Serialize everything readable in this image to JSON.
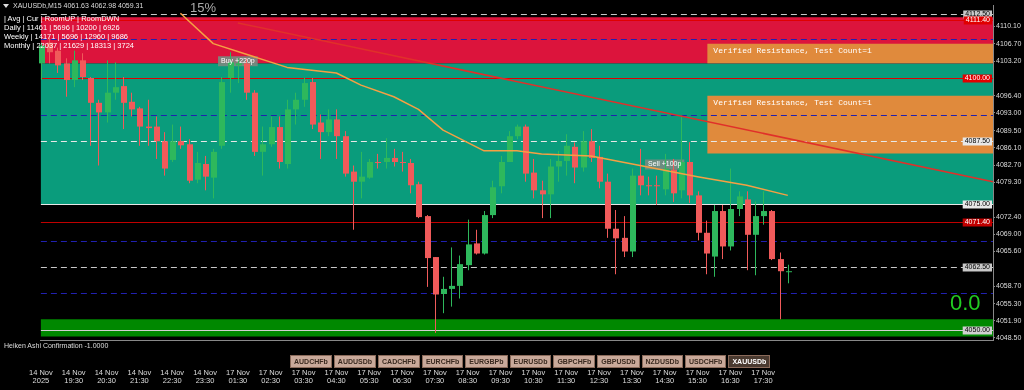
{
  "chart_data": {
    "type": "candlestick",
    "title": "XAUUSDb,M15 4061.63 4062.98 4059.31",
    "categories": [
      "14 Nov 2025",
      null,
      null,
      null,
      "14 Nov 19:30",
      null,
      null,
      null,
      "14 Nov 20:30",
      null,
      null,
      null,
      "14 Nov 21:30",
      null,
      null,
      null,
      "14 Nov 22:30",
      null,
      null,
      null,
      "14 Nov 23:30",
      null,
      null,
      null,
      "17 Nov 01:30",
      null,
      null,
      null,
      "17 Nov 02:30",
      null,
      null,
      null,
      "17 Nov 03:30",
      null,
      null,
      null,
      "17 Nov 04:30",
      null,
      null,
      null,
      "17 Nov 05:30",
      null,
      null,
      null,
      "17 Nov 06:30",
      null,
      null,
      null,
      "17 Nov 07:30",
      null,
      null,
      null,
      "17 Nov 08:30",
      null,
      null,
      null,
      "17 Nov 09:30",
      null,
      null,
      null,
      "17 Nov 10:30",
      null,
      null,
      null,
      "17 Nov 11:30",
      null,
      null,
      null,
      "17 Nov 12:30",
      null,
      null,
      null,
      "17 Nov 13:30",
      null,
      null,
      null,
      "17 Nov 14:30",
      null,
      null,
      null,
      "17 Nov 15:30",
      null,
      null,
      null,
      "17 Nov 16:30",
      null,
      null,
      null,
      "17 Nov 17:30",
      null,
      null,
      null,
      null,
      null,
      null,
      null,
      null,
      null,
      null,
      null,
      null,
      null,
      null,
      null,
      null,
      null,
      null,
      null,
      null,
      null,
      null,
      null,
      null,
      null,
      null,
      null,
      null
    ],
    "ohlc": [
      [
        4102.8,
        4106.9,
        4099.5,
        4106.3
      ],
      [
        4106.9,
        4107.9,
        4102.8,
        4105.0
      ],
      [
        4105.3,
        4105.9,
        4100.9,
        4102.4
      ],
      [
        4102.8,
        4103.8,
        4096.2,
        4099.5
      ],
      [
        4099.5,
        4105.3,
        4098.1,
        4103.4
      ],
      [
        4103.4,
        4104.8,
        4099.5,
        4100.1
      ],
      [
        4099.9,
        4100.1,
        4086.5,
        4095.0
      ],
      [
        4095.0,
        4095.6,
        4082.6,
        4093.1
      ],
      [
        4093.1,
        4103.4,
        4091.1,
        4097.0
      ],
      [
        4097.0,
        4103.0,
        4095.6,
        4098.1
      ],
      [
        4098.3,
        4100.1,
        4089.8,
        4095.0
      ],
      [
        4095.2,
        4097.0,
        4092.3,
        4093.7
      ],
      [
        4093.9,
        4094.2,
        4086.5,
        4090.3
      ],
      [
        4090.3,
        4095.6,
        4086.5,
        4090.0
      ],
      [
        4090.3,
        4092.3,
        4083.9,
        4087.4
      ],
      [
        4087.4,
        4089.2,
        4080.6,
        4082.0
      ],
      [
        4083.7,
        4090.7,
        4083.3,
        4087.4
      ],
      [
        4087.4,
        4090.3,
        4085.9,
        4086.6
      ],
      [
        4086.8,
        4087.8,
        4079.1,
        4079.6
      ],
      [
        4079.8,
        4085.3,
        4079.1,
        4083.1
      ],
      [
        4082.9,
        4084.5,
        4077.7,
        4080.4
      ],
      [
        4080.2,
        4085.9,
        4076.1,
        4085.3
      ],
      [
        4086.5,
        4100.1,
        4085.9,
        4099.1
      ],
      [
        4099.9,
        4105.0,
        4097.0,
        4103.0
      ],
      [
        4102.4,
        4103.8,
        4098.9,
        4102.8
      ],
      [
        4102.8,
        4103.8,
        4095.6,
        4097.0
      ],
      [
        4097.0,
        4097.5,
        4084.5,
        4085.3
      ],
      [
        4085.3,
        4090.3,
        4080.6,
        4086.8
      ],
      [
        4086.8,
        4092.3,
        4086.3,
        4090.2
      ],
      [
        4090.2,
        4092.3,
        4082.0,
        4083.3
      ],
      [
        4082.9,
        4095.6,
        4082.0,
        4093.7
      ],
      [
        4093.7,
        4097.0,
        4090.7,
        4095.6
      ],
      [
        4095.6,
        4099.9,
        4094.2,
        4098.9
      ],
      [
        4099.1,
        4099.9,
        4089.8,
        4090.7
      ],
      [
        4091.1,
        4092.7,
        4083.9,
        4089.2
      ],
      [
        4089.2,
        4093.7,
        4088.4,
        4091.7
      ],
      [
        4091.7,
        4093.7,
        4083.9,
        4088.4
      ],
      [
        4088.4,
        4089.4,
        4080.4,
        4081.0
      ],
      [
        4081.4,
        4082.6,
        4069.9,
        4079.4
      ],
      [
        4079.4,
        4085.3,
        4076.1,
        4080.4
      ],
      [
        4080.2,
        4083.9,
        4080.0,
        4083.3
      ],
      [
        4083.3,
        4084.9,
        4082.0,
        4083.1
      ],
      [
        4083.3,
        4088.0,
        4082.0,
        4084.1
      ],
      [
        4084.1,
        4085.9,
        4082.4,
        4083.3
      ],
      [
        4083.3,
        4085.3,
        4081.4,
        4083.1
      ],
      [
        4083.1,
        4083.9,
        4077.1,
        4078.7
      ],
      [
        4078.9,
        4079.4,
        4072.2,
        4072.4
      ],
      [
        4072.6,
        4072.8,
        4058.6,
        4064.3
      ],
      [
        4064.5,
        4064.5,
        4049.5,
        4057.1
      ],
      [
        4057.2,
        4060.6,
        4053.4,
        4058.2
      ],
      [
        4058.2,
        4066.4,
        4054.7,
        4058.8
      ],
      [
        4058.8,
        4064.8,
        4056.3,
        4063.1
      ],
      [
        4062.9,
        4071.9,
        4061.9,
        4067.0
      ],
      [
        4067.2,
        4069.9,
        4065.0,
        4065.2
      ],
      [
        4065.2,
        4073.6,
        4065.0,
        4072.8
      ],
      [
        4072.8,
        4079.6,
        4072.2,
        4078.3
      ],
      [
        4078.5,
        4084.5,
        4077.1,
        4083.3
      ],
      [
        4083.3,
        4089.4,
        4083.3,
        4088.4
      ],
      [
        4088.4,
        4090.7,
        4087.8,
        4090.3
      ],
      [
        4090.3,
        4090.7,
        4079.4,
        4081.0
      ],
      [
        4081.2,
        4083.9,
        4076.1,
        4077.7
      ],
      [
        4077.7,
        4079.6,
        4072.2,
        4076.9
      ],
      [
        4076.9,
        4083.9,
        4072.2,
        4082.4
      ],
      [
        4082.4,
        4085.5,
        4079.4,
        4083.5
      ],
      [
        4083.5,
        4088.8,
        4080.6,
        4086.5
      ],
      [
        4086.3,
        4087.2,
        4079.1,
        4082.2
      ],
      [
        4082.2,
        4089.4,
        4081.4,
        4087.4
      ],
      [
        4087.4,
        4089.8,
        4083.3,
        4084.1
      ],
      [
        4084.3,
        4086.5,
        4078.1,
        4079.4
      ],
      [
        4079.4,
        4081.0,
        4068.3,
        4070.1
      ],
      [
        4070.1,
        4073.8,
        4061.1,
        4068.2
      ],
      [
        4068.3,
        4072.6,
        4064.5,
        4065.6
      ],
      [
        4065.6,
        4082.0,
        4064.5,
        4080.6
      ],
      [
        4080.6,
        4085.9,
        4076.7,
        4078.7
      ],
      [
        4078.7,
        4080.4,
        4076.7,
        4078.5
      ],
      [
        4078.7,
        4080.6,
        4074.8,
        4078.5
      ],
      [
        4077.9,
        4084.9,
        4076.7,
        4082.0
      ],
      [
        4081.8,
        4083.9,
        4075.4,
        4077.1
      ],
      [
        4077.7,
        4092.5,
        4076.1,
        4083.3
      ],
      [
        4083.3,
        4087.2,
        4075.2,
        4076.7
      ],
      [
        4076.7,
        4077.5,
        4067.8,
        4069.3
      ],
      [
        4069.3,
        4071.7,
        4061.1,
        4065.2
      ],
      [
        4064.6,
        4074.8,
        4060.6,
        4073.6
      ],
      [
        4073.6,
        4074.8,
        4064.1,
        4066.6
      ],
      [
        4066.6,
        4082.0,
        4065.8,
        4074.0
      ],
      [
        4074.0,
        4077.5,
        4072.6,
        4076.5
      ],
      [
        4075.9,
        4077.5,
        4061.9,
        4068.9
      ],
      [
        4068.9,
        4075.5,
        4060.9,
        4072.6
      ],
      [
        4072.6,
        4077.5,
        4070.9,
        4073.6
      ],
      [
        4073.6,
        4073.8,
        4063.9,
        4064.1
      ],
      [
        4064.1,
        4065.4,
        4052.2,
        4061.7
      ],
      [
        4061.63,
        4062.98,
        4059.31,
        4061.7
      ],
      null,
      null,
      null,
      null,
      null,
      null,
      null,
      null,
      null,
      null,
      null,
      null,
      null,
      null,
      null,
      null,
      null,
      null,
      null,
      null,
      null,
      null,
      null,
      null,
      null
    ],
    "series": [
      {
        "type": "line",
        "color": "#f5a043",
        "values": [
          null,
          null,
          null,
          null,
          null,
          null,
          null,
          null,
          null,
          null,
          null,
          null,
          null,
          null,
          null,
          null,
          null,
          4112.7,
          null,
          null,
          null,
          4106.7,
          null,
          null,
          null,
          null,
          null,
          null,
          null,
          null,
          4102.0,
          null,
          null,
          null,
          null,
          null,
          4100.9,
          null,
          null,
          4098.5,
          null,
          null,
          null,
          4096.2,
          null,
          null,
          4093.7,
          null,
          null,
          4089.6,
          null,
          null,
          null,
          null,
          4085.5,
          null,
          null,
          null,
          4085.5,
          null,
          null,
          4084.9,
          null,
          null,
          null,
          null,
          null,
          4084.5,
          null,
          null,
          null,
          null,
          null,
          4082.6,
          null,
          null,
          null,
          null,
          null,
          null,
          4080.4,
          null,
          null,
          null,
          null,
          null,
          4078.7,
          null,
          null,
          null,
          null,
          4076.7,
          null,
          null,
          null,
          null,
          null,
          null,
          null,
          null,
          null,
          null,
          null,
          null,
          null,
          null,
          null,
          null,
          null,
          null,
          null,
          null,
          null,
          null,
          null,
          null,
          null
        ]
      },
      {
        "type": "line",
        "color": "#e0302a",
        "values": [
          null,
          null,
          null,
          null,
          null,
          null,
          null,
          null,
          null,
          null,
          null,
          null,
          null,
          null,
          null,
          null,
          null,
          null,
          null,
          null,
          null,
          null,
          null,
          null,
          4110.8,
          null,
          null,
          null,
          null,
          null,
          null,
          null,
          null,
          null,
          null,
          null,
          null,
          null,
          null,
          null,
          null,
          null,
          null,
          null,
          null,
          null,
          null,
          null,
          null,
          null,
          null,
          null,
          null,
          null,
          null,
          null,
          null,
          null,
          null,
          null,
          null,
          null,
          null,
          null,
          null,
          null,
          null,
          null,
          null,
          null,
          null,
          null,
          null,
          null,
          null,
          null,
          null,
          null,
          null,
          null,
          null,
          null,
          null,
          null,
          null,
          null,
          null,
          null,
          null,
          null,
          null,
          null,
          null,
          null,
          null,
          null,
          null,
          null,
          null,
          null,
          null,
          null,
          null,
          null,
          null,
          null,
          null,
          null,
          null,
          null,
          null,
          null,
          null,
          null,
          null,
          null,
          4079.4
        ]
      }
    ],
    "ylim": [
      4048.1,
      4114.3
    ],
    "yticks": [
      {
        "value": 4110.1,
        "label": "4110.10"
      },
      {
        "value": 4106.7,
        "label": "4106.70"
      },
      {
        "value": 4103.2,
        "label": "4103.20"
      },
      {
        "value": 4096.4,
        "label": "4096.40"
      },
      {
        "value": 4093,
        "label": "4093.00"
      },
      {
        "value": 4089.5,
        "label": "4089.50"
      },
      {
        "value": 4086.1,
        "label": "4086.10"
      },
      {
        "value": 4082.7,
        "label": "4082.70"
      },
      {
        "value": 4079.3,
        "label": "4079.30"
      },
      {
        "value": 4072.4,
        "label": "4072.40"
      },
      {
        "value": 4069,
        "label": "4069.00"
      },
      {
        "value": 4065.6,
        "label": "4065.60"
      },
      {
        "value": 4058.7,
        "label": "4058.70"
      },
      {
        "value": 4055.3,
        "label": "4055.30"
      },
      {
        "value": 4051.9,
        "label": "4051.90"
      },
      {
        "value": 4048.5,
        "label": "4048.50"
      }
    ],
    "bands": [
      {
        "axis": "y",
        "from": 4075.0,
        "to": 4102.8,
        "color": "#0a9c7c"
      },
      {
        "axis": "y",
        "from": 4102.8,
        "to": 4111.9,
        "color": "#dc143c"
      },
      {
        "axis": "y",
        "from": 4102.8,
        "to": 4106.7,
        "color": "#e08a3c",
        "label": "Verified Resistance, Test Count=1"
      },
      {
        "axis": "y",
        "from": 4085.0,
        "to": 4096.4,
        "color": "#e08a3c",
        "label": "Verified Resistance, Test Count=1"
      },
      {
        "axis": "y",
        "from": 4048.8,
        "to": 4052.2,
        "color": "#008800"
      }
    ],
    "ref_lines": [
      {
        "axis": "y",
        "value": 4112.5,
        "label": "4112.50",
        "color": "#c8c8c8",
        "line_style": "dashed"
      },
      {
        "axis": "y",
        "value": 4111.4,
        "label": "4111.40",
        "color": "#e00000",
        "line_style": "solid"
      },
      {
        "axis": "y",
        "value": 4107.7,
        "color": "#2020b0",
        "line_style": "dashed"
      },
      {
        "axis": "y",
        "value": 4100.0,
        "label": "4100.00",
        "color": "#e00000",
        "line_style": "solid"
      },
      {
        "axis": "y",
        "value": 4092.5,
        "color": "#2020b0",
        "line_style": "dashed"
      },
      {
        "axis": "y",
        "value": 4087.5,
        "label": "4087.50",
        "color": "#e8e8e8",
        "line_style": "dashed"
      },
      {
        "axis": "y",
        "value": 4075.0,
        "label": "4075.00",
        "color": "#e8e8e8",
        "line_style": "solid"
      },
      {
        "axis": "y",
        "value": 4071.4,
        "label": "4071.40",
        "color": "#c00000",
        "line_style": "solid"
      },
      {
        "axis": "y",
        "value": 4067.6,
        "color": "#2020b0",
        "line_style": "dashed"
      },
      {
        "axis": "y",
        "value": 4062.5,
        "label": "4062.50",
        "color": "#c8c8c8",
        "line_style": "dashed"
      },
      {
        "axis": "y",
        "value": 4057.4,
        "color": "#2020b0",
        "line_style": "dashed"
      },
      {
        "axis": "y",
        "value": 4050.0,
        "label": "4050.00",
        "color": "#d0d0d0",
        "line_style": "solid"
      }
    ],
    "annotations": [
      "| Avg | Cur | RoomUP | RoomDWN",
      "Daily | 11461 | 5696 | 10200 | 6926",
      "Weekly | 14171 | 5696 | 12960 | 9686",
      "Monthly | 22037 | 21629 | 18313 | 3724",
      "15%",
      "0.0",
      "Heiken Ashi Confirmation -1.0000",
      "AUDCHFb",
      "AUDUSDb",
      "CADCHFb",
      "EURCHFb",
      "EURGBPb",
      "EURUSDb",
      "GBPCHFb",
      "GBPUSDb",
      "NZDUSDb",
      "USDCHFb",
      "XAUUSDb",
      {
        "text": "Buy +220p",
        "x": "17 Nov 01:30",
        "y": 4103.2
      },
      {
        "text": "Sell +100p",
        "x": "17 Nov 14:30",
        "y": 4082.8
      }
    ],
    "grid": false,
    "legend": false,
    "marker": "none"
  }
}
